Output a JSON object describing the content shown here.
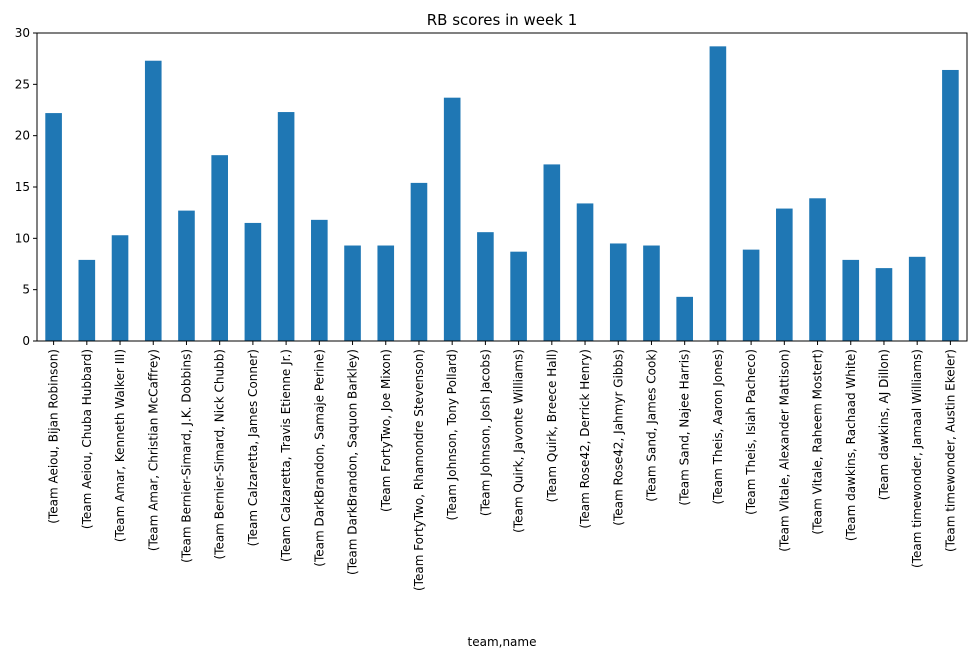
{
  "chart_data": {
    "type": "bar",
    "title": "RB scores in week 1",
    "xlabel": "team,name",
    "ylabel": "",
    "ylim": [
      0,
      30
    ],
    "yticks": [
      0,
      5,
      10,
      15,
      20,
      25,
      30
    ],
    "grid": false,
    "bar_color": "#1f77b4",
    "categories": [
      "(Team Aeiou, Bijan Robinson)",
      "(Team Aeiou, Chuba Hubbard)",
      "(Team Amar, Kenneth Walker III)",
      "(Team Amar, Christian McCaffrey)",
      "(Team Bernier-Simard, J.K. Dobbins)",
      "(Team Bernier-Simard, Nick Chubb)",
      "(Team Calzaretta, James Conner)",
      "(Team Calzaretta, Travis Etienne Jr.)",
      "(Team DarkBrandon, Samaje Perine)",
      "(Team DarkBrandon, Saquon Barkley)",
      "(Team FortyTwo, Joe Mixon)",
      "(Team FortyTwo, Rhamondre Stevenson)",
      "(Team Johnson, Tony Pollard)",
      "(Team Johnson, Josh Jacobs)",
      "(Team Quirk, Javonte Williams)",
      "(Team Quirk, Breece Hall)",
      "(Team Rose42, Derrick Henry)",
      "(Team Rose42, Jahmyr Gibbs)",
      "(Team Sand, James Cook)",
      "(Team Sand, Najee Harris)",
      "(Team Theis, Aaron Jones)",
      "(Team Theis, Isiah Pacheco)",
      "(Team Vitale, Alexander Mattison)",
      "(Team Vitale, Raheem Mostert)",
      "(Team dawkins, Rachaad White)",
      "(Team dawkins, AJ Dillon)",
      "(Team timewonder, Jamaal Williams)",
      "(Team timewonder, Austin Ekeler)"
    ],
    "values": [
      22.2,
      7.9,
      10.3,
      27.3,
      12.7,
      18.1,
      11.5,
      22.3,
      11.8,
      9.3,
      9.3,
      15.4,
      23.7,
      10.6,
      8.7,
      17.2,
      13.4,
      9.5,
      9.3,
      4.3,
      28.7,
      8.9,
      12.9,
      13.9,
      7.9,
      7.1,
      8.2,
      26.4
    ]
  }
}
